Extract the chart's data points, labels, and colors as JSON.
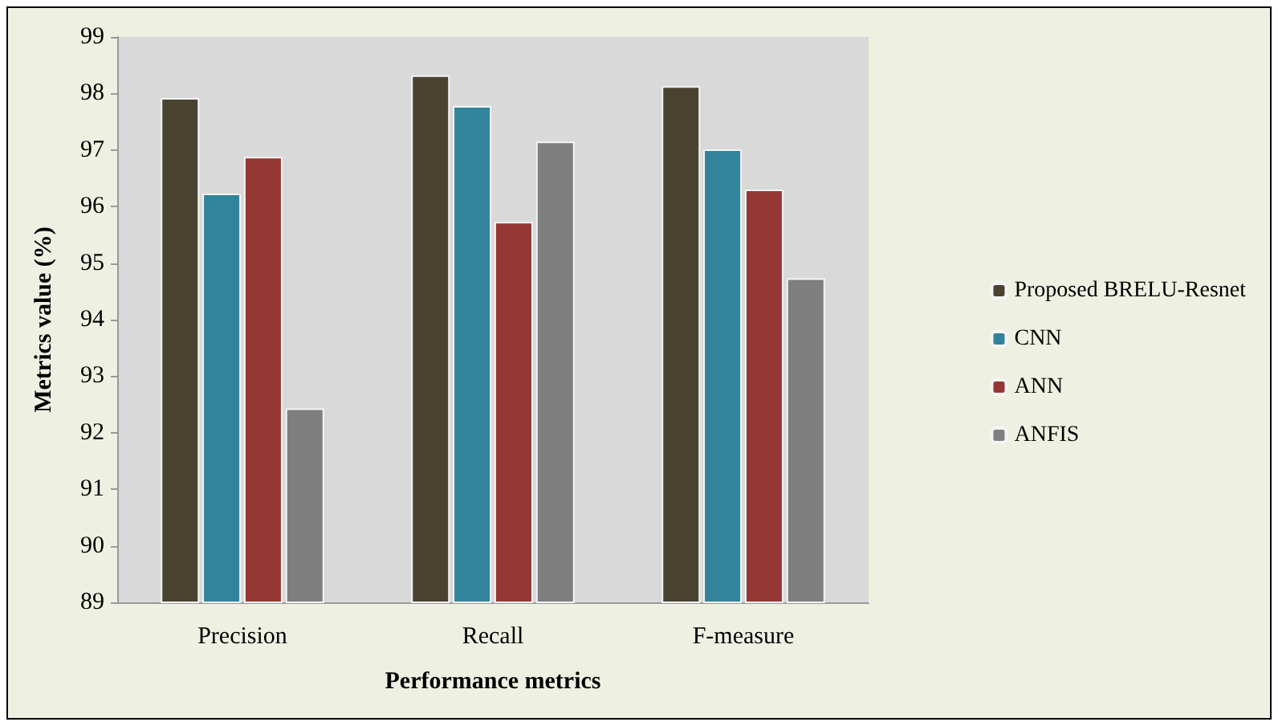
{
  "chart_data": {
    "type": "bar",
    "xlabel": "Performance metrics",
    "ylabel": "Metrics value (%)",
    "categories": [
      "Precision",
      "Recall",
      "F-measure"
    ],
    "series": [
      {
        "name": "Proposed BRELU-Resnet",
        "color": "#4a4330",
        "values": [
          97.92,
          98.32,
          98.13
        ]
      },
      {
        "name": "CNN",
        "color": "#31849b",
        "values": [
          96.23,
          97.78,
          97.01
        ]
      },
      {
        "name": "ANN",
        "color": "#953735",
        "values": [
          96.88,
          95.73,
          96.3
        ]
      },
      {
        "name": "ANFIS",
        "color": "#7f7f7f",
        "values": [
          92.43,
          97.15,
          94.73
        ]
      }
    ],
    "ylim": [
      89,
      99
    ],
    "yticks": [
      89,
      90,
      91,
      92,
      93,
      94,
      95,
      96,
      97,
      98,
      99
    ],
    "grid": false,
    "legend": "right"
  }
}
